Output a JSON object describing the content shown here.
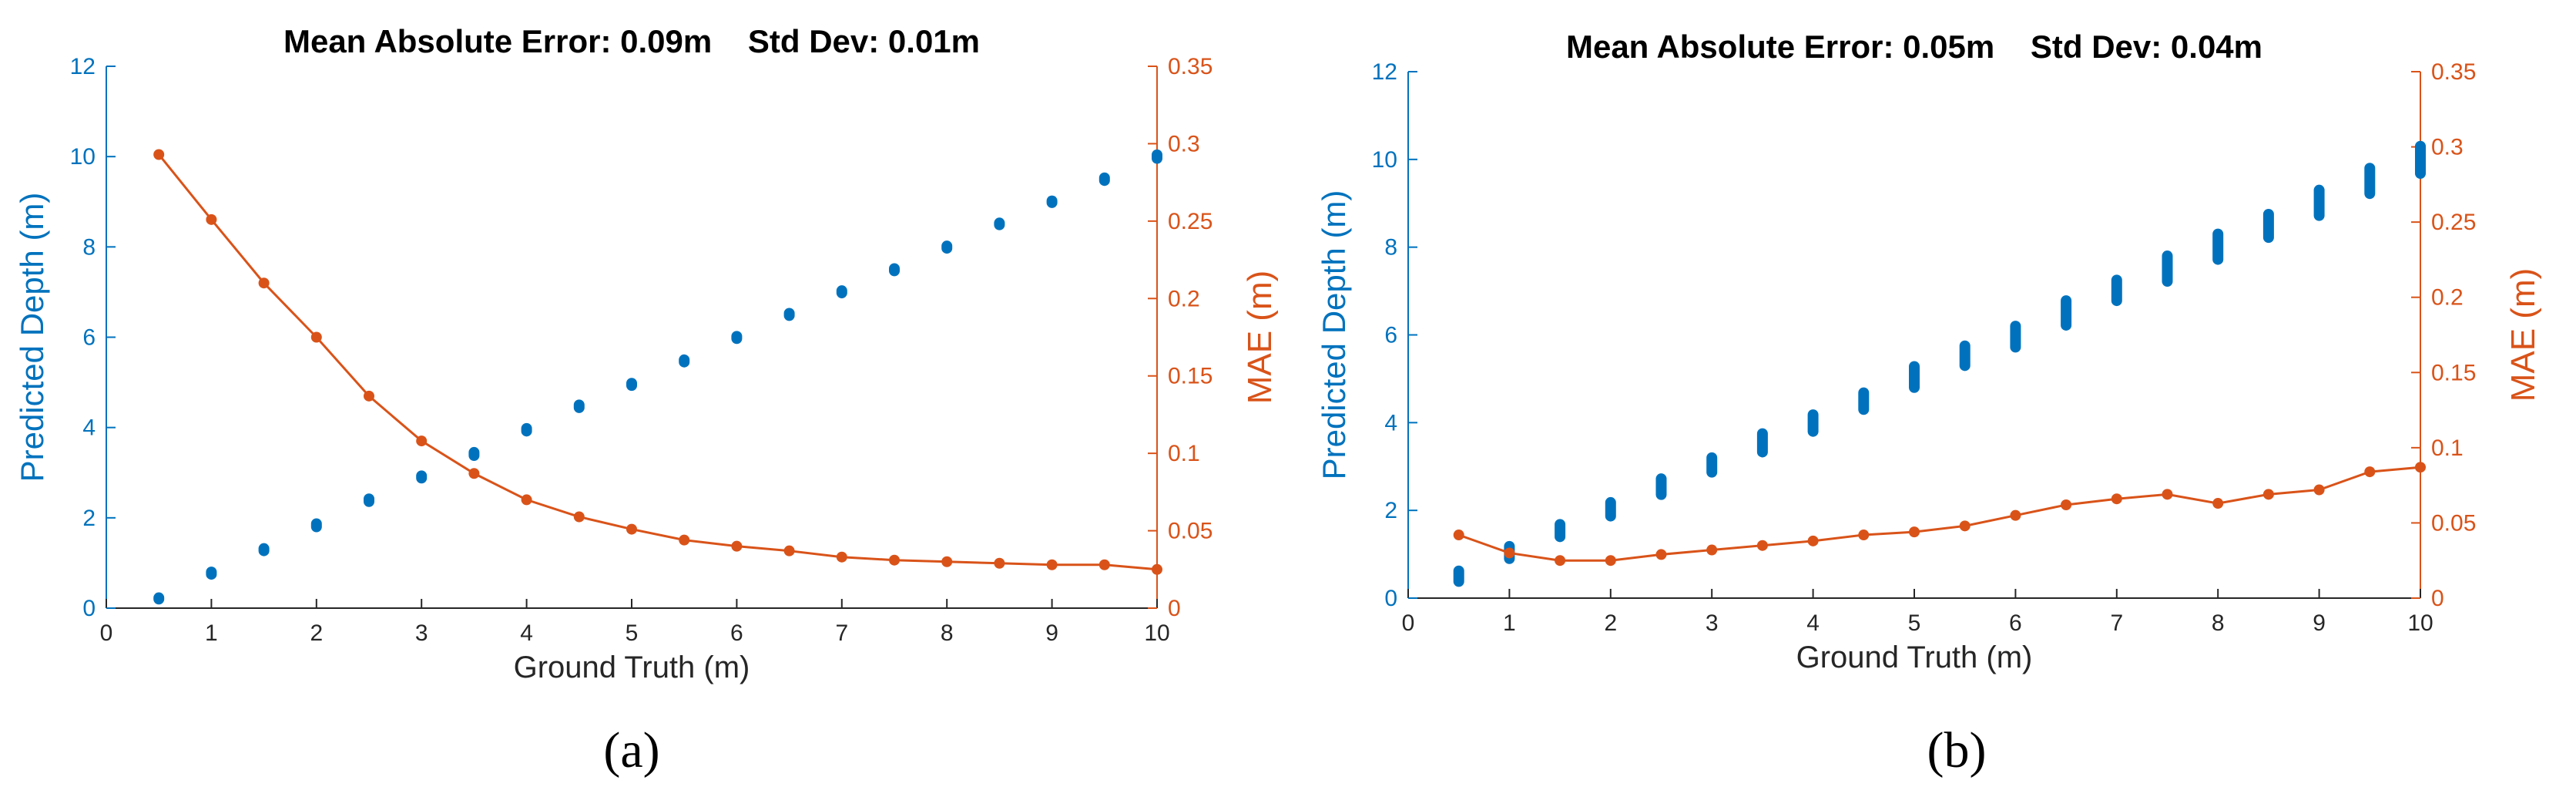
{
  "colors": {
    "left_axis": "#0072BD",
    "right_axis": "#D95319",
    "axis": "#262626",
    "background": "#ffffff"
  },
  "chart_data": [
    {
      "type": "scatter",
      "title": "Mean Absolute Error: 0.09m    Std Dev: 0.01m",
      "caption": "(a)",
      "xlabel": "Ground Truth (m)",
      "ylabel": "Predicted Depth (m)",
      "y2label": "MAE (m)",
      "xlim": [
        0,
        10
      ],
      "ylim": [
        0,
        12
      ],
      "y2lim": [
        0,
        0.35
      ],
      "xticks": [
        "0",
        "1",
        "2",
        "3",
        "4",
        "5",
        "6",
        "7",
        "8",
        "9",
        "10"
      ],
      "yticks": [
        "0",
        "2",
        "4",
        "6",
        "8",
        "10",
        "12"
      ],
      "y2ticks": [
        "0",
        "0.05",
        "0.1",
        "0.15",
        "0.2",
        "0.25",
        "0.3",
        "0.35"
      ],
      "series": [
        {
          "name": "Predicted Depth",
          "axis": "left",
          "style": "scatter",
          "x": [
            0.5,
            1,
            1.5,
            2,
            2.5,
            3,
            3.5,
            4,
            4.5,
            5,
            5.5,
            6,
            6.5,
            7,
            7.5,
            8,
            8.5,
            9,
            9.5,
            10
          ],
          "y_min": [
            0.2,
            0.75,
            1.27,
            1.8,
            2.36,
            2.88,
            3.38,
            3.92,
            4.44,
            4.93,
            5.45,
            5.97,
            6.48,
            6.98,
            7.47,
            7.97,
            8.49,
            8.98,
            9.47,
            9.96
          ],
          "y_max": [
            0.23,
            0.8,
            1.32,
            1.87,
            2.42,
            2.93,
            3.45,
            3.98,
            4.5,
            4.98,
            5.5,
            6.02,
            6.53,
            7.03,
            7.52,
            8.02,
            8.53,
            9.02,
            9.53,
            10.04
          ]
        },
        {
          "name": "MAE",
          "axis": "right",
          "style": "line-marker",
          "x": [
            0.5,
            1,
            1.5,
            2,
            2.5,
            3,
            3.5,
            4,
            4.5,
            5,
            5.5,
            6,
            6.5,
            7,
            7.5,
            8,
            8.5,
            9,
            9.5,
            10
          ],
          "y": [
            0.293,
            0.251,
            0.21,
            0.175,
            0.137,
            0.108,
            0.087,
            0.07,
            0.059,
            0.051,
            0.044,
            0.04,
            0.037,
            0.033,
            0.031,
            0.03,
            0.029,
            0.028,
            0.028,
            0.025
          ]
        }
      ]
    },
    {
      "type": "scatter",
      "title": "Mean Absolute Error: 0.05m    Std Dev: 0.04m",
      "caption": "(b)",
      "xlabel": "Ground Truth (m)",
      "ylabel": "Predicted Depth (m)",
      "y2label": "MAE (m)",
      "xlim": [
        0,
        10
      ],
      "ylim": [
        0,
        12
      ],
      "y2lim": [
        0,
        0.35
      ],
      "xticks": [
        "0",
        "1",
        "2",
        "3",
        "4",
        "5",
        "6",
        "7",
        "8",
        "9",
        "10"
      ],
      "yticks": [
        "0",
        "2",
        "4",
        "6",
        "8",
        "10",
        "12"
      ],
      "y2ticks": [
        "0",
        "0.05",
        "0.1",
        "0.15",
        "0.2",
        "0.25",
        "0.3",
        "0.35"
      ],
      "series": [
        {
          "name": "Predicted Depth",
          "axis": "left",
          "style": "scatter",
          "x": [
            0.5,
            1,
            1.5,
            2,
            2.5,
            3,
            3.5,
            4,
            4.5,
            5,
            5.5,
            6,
            6.5,
            7,
            7.5,
            8,
            8.5,
            9,
            9.5,
            10
          ],
          "y_min": [
            0.38,
            0.9,
            1.4,
            1.87,
            2.36,
            2.87,
            3.33,
            3.8,
            4.3,
            4.8,
            5.3,
            5.72,
            6.22,
            6.78,
            7.22,
            7.72,
            8.22,
            8.72,
            9.22,
            9.68
          ],
          "y_max": [
            0.62,
            1.18,
            1.68,
            2.18,
            2.72,
            3.2,
            3.75,
            4.18,
            4.68,
            5.28,
            5.75,
            6.2,
            6.78,
            7.25,
            7.8,
            8.3,
            8.75,
            9.3,
            9.8,
            10.3
          ]
        },
        {
          "name": "MAE",
          "axis": "right",
          "style": "line-marker",
          "x": [
            0.5,
            1,
            1.5,
            2,
            2.5,
            3,
            3.5,
            4,
            4.5,
            5,
            5.5,
            6,
            6.5,
            7,
            7.5,
            8,
            8.5,
            9,
            9.5,
            10
          ],
          "y": [
            0.042,
            0.03,
            0.025,
            0.025,
            0.029,
            0.032,
            0.035,
            0.038,
            0.042,
            0.044,
            0.048,
            0.055,
            0.062,
            0.066,
            0.069,
            0.063,
            0.069,
            0.072,
            0.084,
            0.087
          ]
        }
      ]
    }
  ]
}
